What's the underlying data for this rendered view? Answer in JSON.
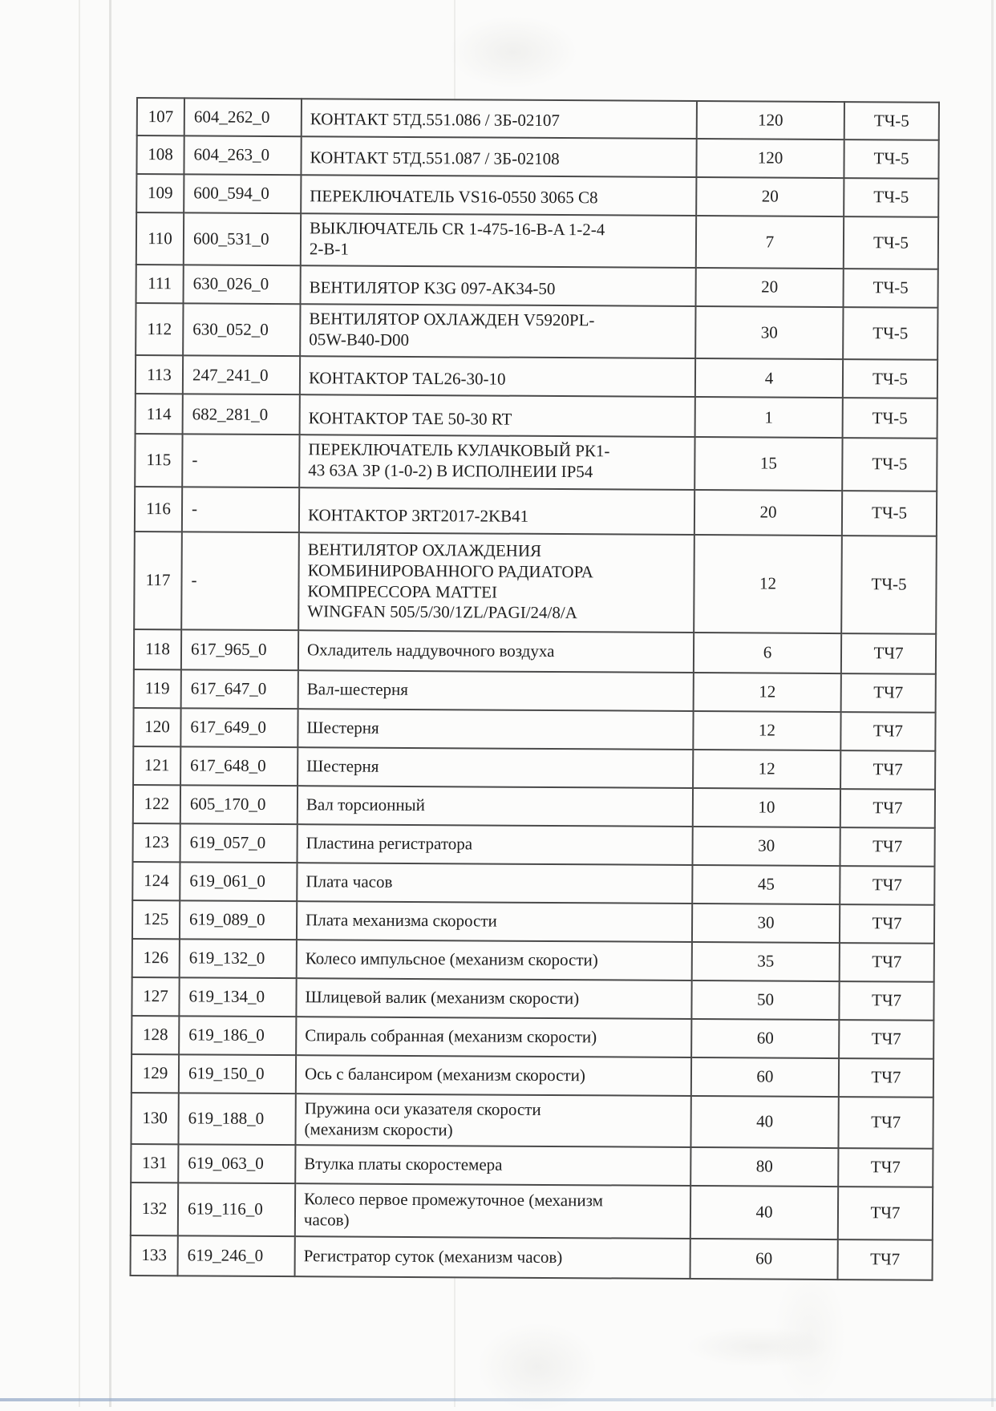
{
  "colors": {
    "ink": "#212121",
    "table_border": "#4a4a4a",
    "paper": "#fbfbfa",
    "page_edge_line": "#aabed6"
  },
  "table": {
    "rows": [
      [
        "107",
        "604_262_0",
        "КОНТАКТ 5ТД.551.086 / 3Б-02107",
        "120",
        "ТЧ-5"
      ],
      [
        "108",
        "604_263_0",
        "КОНТАКТ 5ТД.551.087 / 3Б-02108",
        "120",
        "ТЧ-5"
      ],
      [
        "109",
        "600_594_0",
        "ПЕРЕКЛЮЧАТЕЛЬ VS16-0550 3065 C8",
        "20",
        "ТЧ-5"
      ],
      [
        "110",
        "600_531_0",
        "ВЫКЛЮЧАТЕЛЬ CR 1-475-16-B-A 1-2-4\n2-B-1",
        "7",
        "ТЧ-5"
      ],
      [
        "111",
        "630_026_0",
        "ВЕНТИЛЯТОР K3G 097-AK34-50",
        "20",
        "ТЧ-5"
      ],
      [
        "112",
        "630_052_0",
        "ВЕНТИЛЯТОР ОХЛАЖДЕН V5920PL-\n05W-B40-D00",
        "30",
        "ТЧ-5"
      ],
      [
        "113",
        "247_241_0",
        "КОНТАКТОР TAL26-30-10",
        "4",
        "ТЧ-5"
      ],
      [
        "114",
        "682_281_0",
        "КОНТАКТОР TAE 50-30 RT",
        "1",
        "ТЧ-5"
      ],
      [
        "115",
        "-",
        "ПЕРЕКЛЮЧАТЕЛЬ КУЛАЧКОВЫЙ РК1-\n43 63А 3Р (1-0-2) В ИСПОЛНЕИИ IP54",
        "15",
        "ТЧ-5"
      ],
      [
        "116",
        "-",
        "КОНТАКТОР 3RT2017-2KB41",
        "20",
        "ТЧ-5"
      ],
      [
        "117",
        "-",
        "ВЕНТИЛЯТОР ОХЛАЖДЕНИЯ\nКОМБИНИРОВАННОГО РАДИАТОРА\nКОМПРЕССОРА MATTEI\nWINGFAN 505/5/30/1ZL/PAGI/24/8/A",
        "12",
        "ТЧ-5"
      ],
      [
        "118",
        "617_965_0",
        "Охладитель наддувочного воздуха",
        "6",
        "ТЧ7"
      ],
      [
        "119",
        "617_647_0",
        "Вал-шестерня",
        "12",
        "ТЧ7"
      ],
      [
        "120",
        "617_649_0",
        "Шестерня",
        "12",
        "ТЧ7"
      ],
      [
        "121",
        "617_648_0",
        "Шестерня",
        "12",
        "ТЧ7"
      ],
      [
        "122",
        "605_170_0",
        "Вал торсионный",
        "10",
        "ТЧ7"
      ],
      [
        "123",
        "619_057_0",
        "Пластина регистратора",
        "30",
        "ТЧ7"
      ],
      [
        "124",
        "619_061_0",
        "Плата часов",
        "45",
        "ТЧ7"
      ],
      [
        "125",
        "619_089_0",
        "Плата механизма скорости",
        "30",
        "ТЧ7"
      ],
      [
        "126",
        "619_132_0",
        "Колесо импульсное (механизм скорости)",
        "35",
        "ТЧ7"
      ],
      [
        "127",
        "619_134_0",
        "Шлицевой валик (механизм скорости)",
        "50",
        "ТЧ7"
      ],
      [
        "128",
        "619_186_0",
        "Спираль собранная (механизм скорости)",
        "60",
        "ТЧ7"
      ],
      [
        "129",
        "619_150_0",
        "Ось с балансиром (механизм скорости)",
        "60",
        "ТЧ7"
      ],
      [
        "130",
        "619_188_0",
        "Пружина оси указателя скорости\n(механизм скорости)",
        "40",
        "ТЧ7"
      ],
      [
        "131",
        "619_063_0",
        "Втулка платы скоростемера",
        "80",
        "ТЧ7"
      ],
      [
        "132",
        "619_116_0",
        "Колесо первое промежуточное (механизм\nчасов)",
        "40",
        "ТЧ7"
      ],
      [
        "133",
        "619_246_0",
        "Регистратор суток (механизм часов)",
        "60",
        "ТЧ7"
      ]
    ]
  }
}
